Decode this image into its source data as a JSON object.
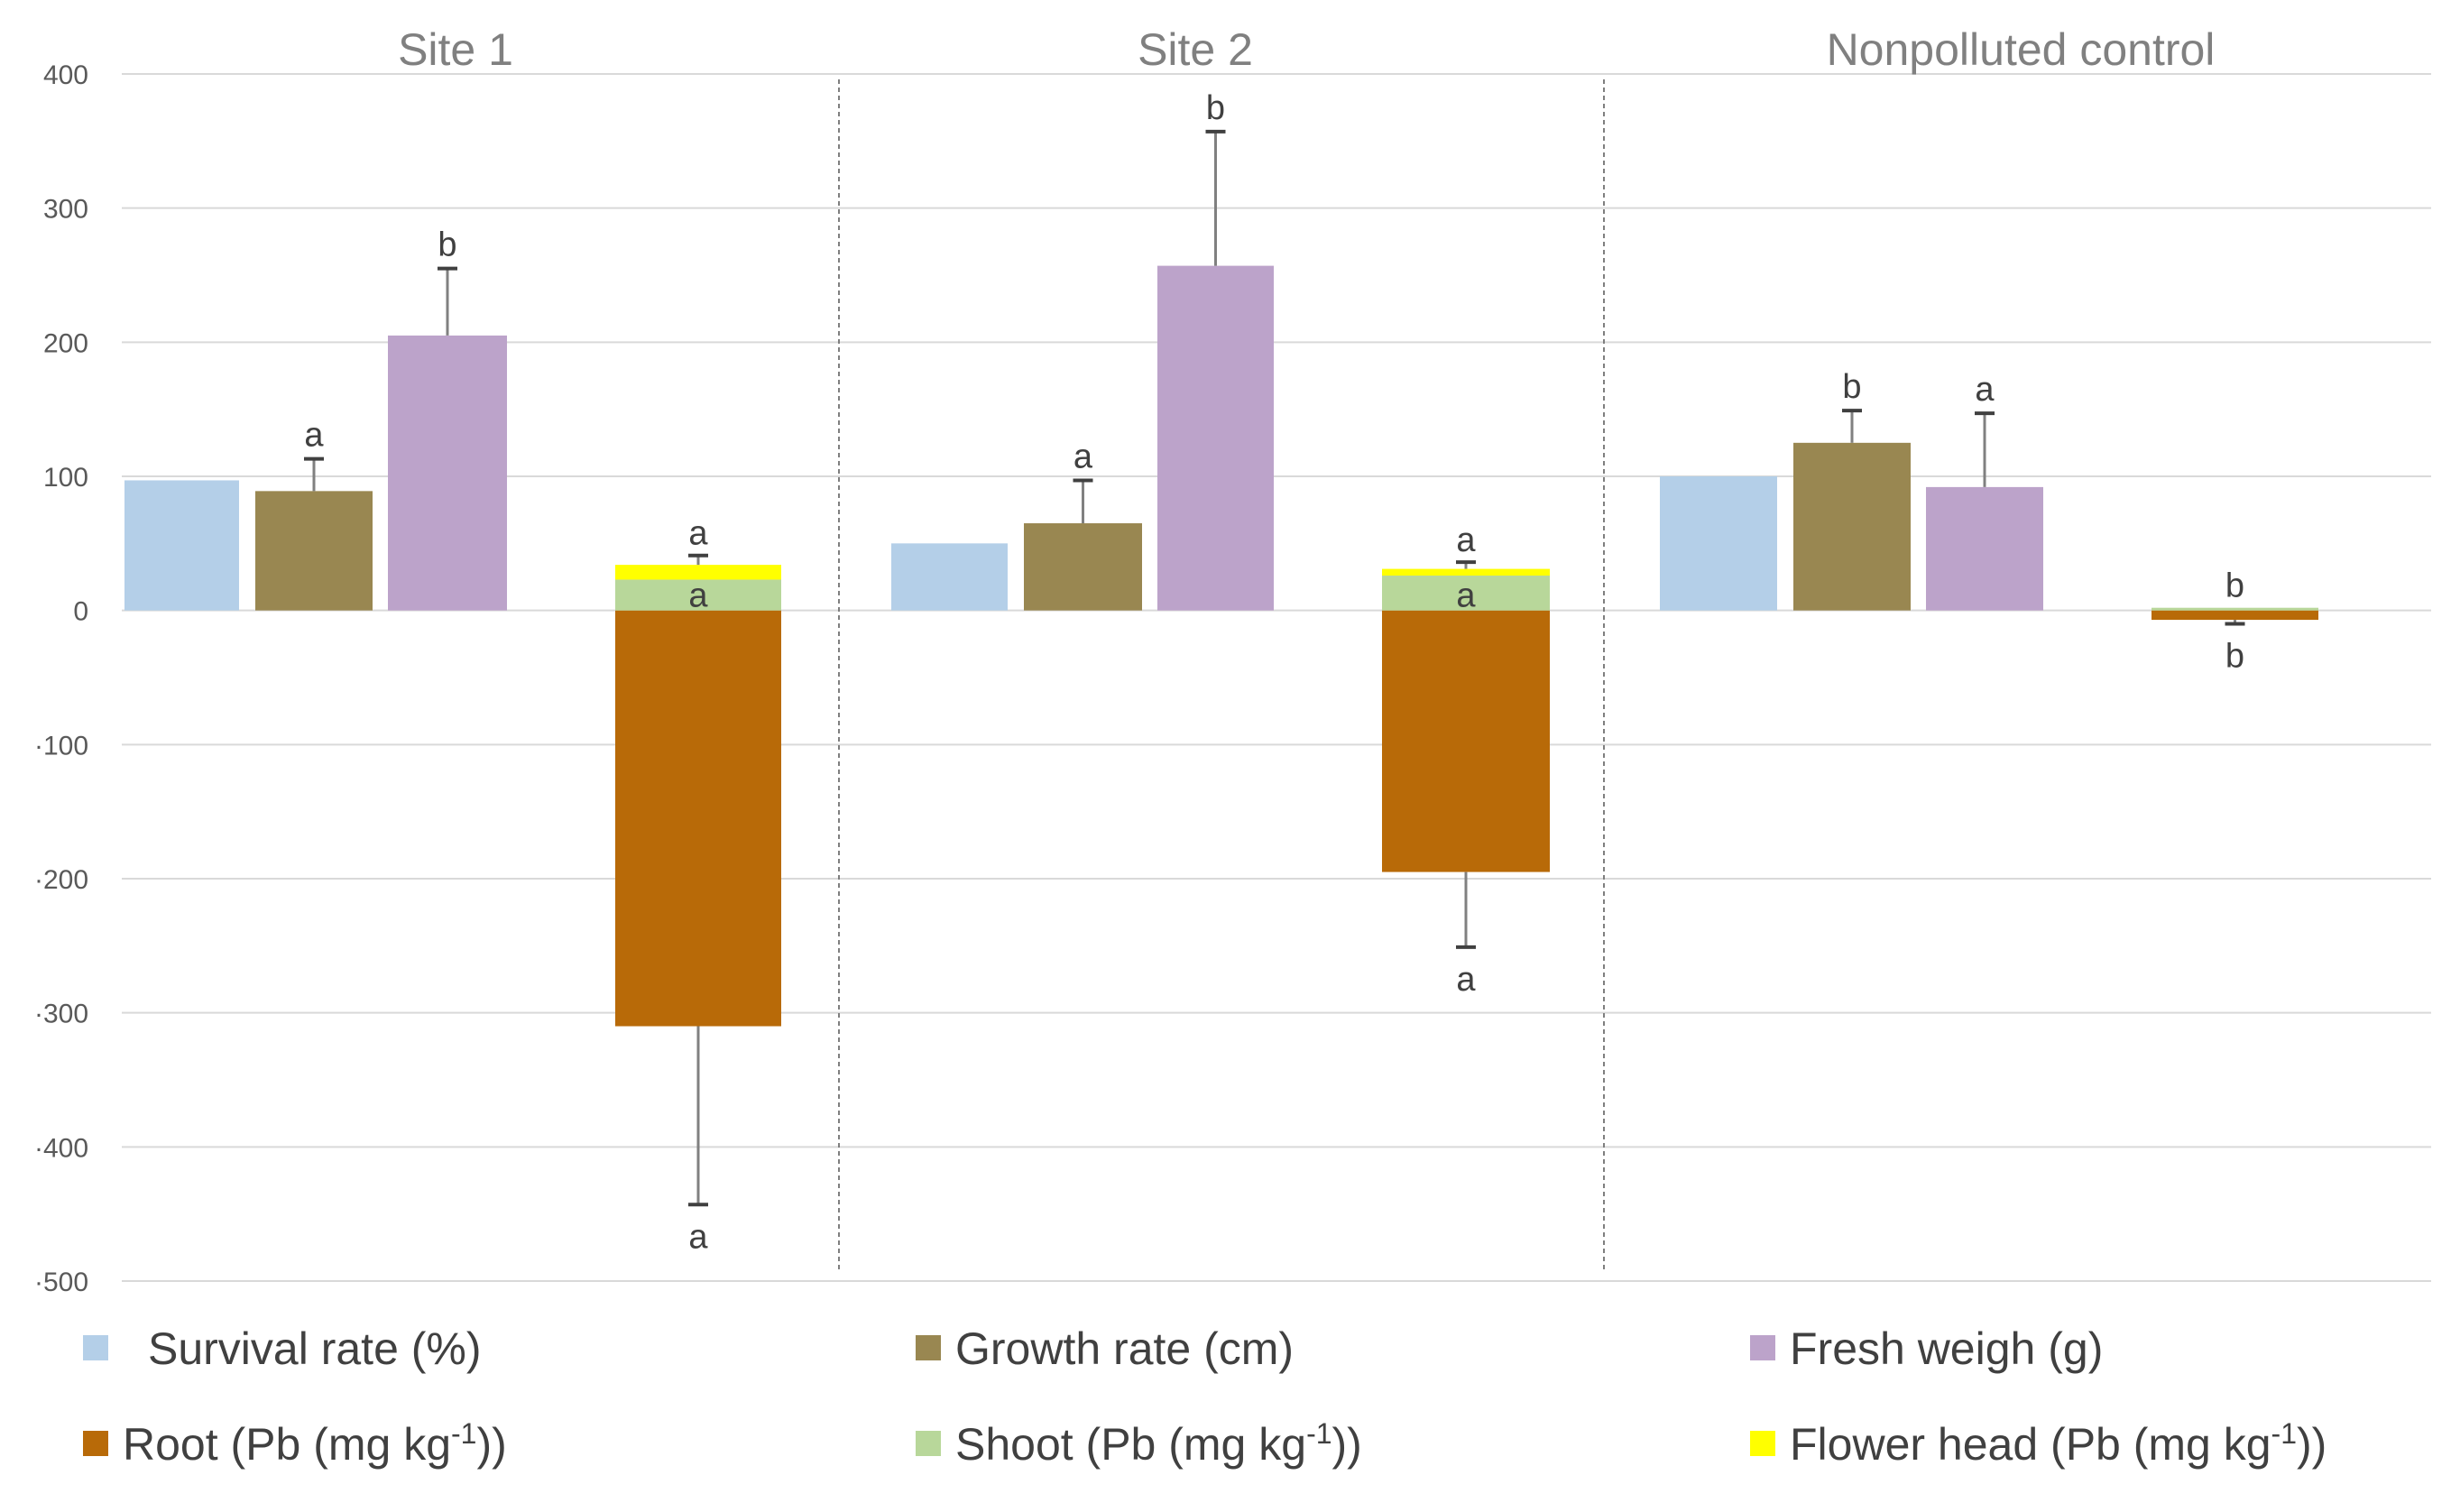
{
  "chart_data": {
    "type": "bar",
    "ylim": [
      -500,
      400
    ],
    "yticks": [
      400,
      300,
      200,
      100,
      0,
      -100,
      -200,
      -300,
      -400,
      -500
    ],
    "ytick_labels": [
      "400",
      "300",
      "200",
      "100",
      "0",
      "·100",
      "·200",
      "·300",
      "·400",
      "·500"
    ],
    "groups": [
      {
        "name": "Site 1",
        "bars": [
          {
            "series": "survival",
            "value": 97
          },
          {
            "series": "growth",
            "value": 89,
            "err": 24,
            "label": "a"
          },
          {
            "series": "fresh",
            "value": 205,
            "err": 50,
            "label": "b"
          }
        ],
        "stack": {
          "root": -310,
          "root_err": 133,
          "root_label": "a",
          "shoot": 23,
          "shoot_label": "a",
          "flower": 11,
          "flower_err": 7,
          "flower_label": "a"
        }
      },
      {
        "name": "Site 2",
        "bars": [
          {
            "series": "survival",
            "value": 50
          },
          {
            "series": "growth",
            "value": 65,
            "err": 32,
            "label": "a"
          },
          {
            "series": "fresh",
            "value": 257,
            "err": 100,
            "label": "b"
          }
        ],
        "stack": {
          "root": -195,
          "root_err": 56,
          "root_label": "a",
          "shoot": 26,
          "shoot_label": "a",
          "flower": 5,
          "flower_err": 5,
          "flower_label": "a"
        }
      },
      {
        "name": "Nonpolluted control",
        "bars": [
          {
            "series": "survival",
            "value": 100
          },
          {
            "series": "growth",
            "value": 125,
            "err": 24,
            "label": "b"
          },
          {
            "series": "fresh",
            "value": 92,
            "err": 55,
            "label": "a"
          }
        ],
        "stack": {
          "root": -7,
          "root_err": 3,
          "root_label": "b",
          "shoot": 2,
          "shoot_label": "b",
          "flower": 0,
          "flower_err": 0,
          "flower_label": ""
        }
      }
    ],
    "series": [
      {
        "key": "survival",
        "name": "Survival rate (%)",
        "color": "#b4cfe8"
      },
      {
        "key": "growth",
        "name": "Growth rate (cm)",
        "color": "#998751"
      },
      {
        "key": "fresh",
        "name": "Fresh weigh (g)",
        "color": "#bca3ca"
      },
      {
        "key": "root",
        "name": "Root (Pb (mg kg",
        "sup": "-1",
        "suffix": "))",
        "color": "#b86a08"
      },
      {
        "key": "shoot",
        "name": "Shoot (Pb (mg kg",
        "sup": "-1",
        "suffix": "))",
        "color": "#b8d79a"
      },
      {
        "key": "flower",
        "name": "Flower head (Pb (mg kg",
        "sup": "-1",
        "suffix": "))",
        "color": "#ffff00"
      }
    ],
    "gridline_color": "#d9d9d9",
    "separator_color": "#7f7f7f",
    "errorbar_color": "#404040"
  }
}
